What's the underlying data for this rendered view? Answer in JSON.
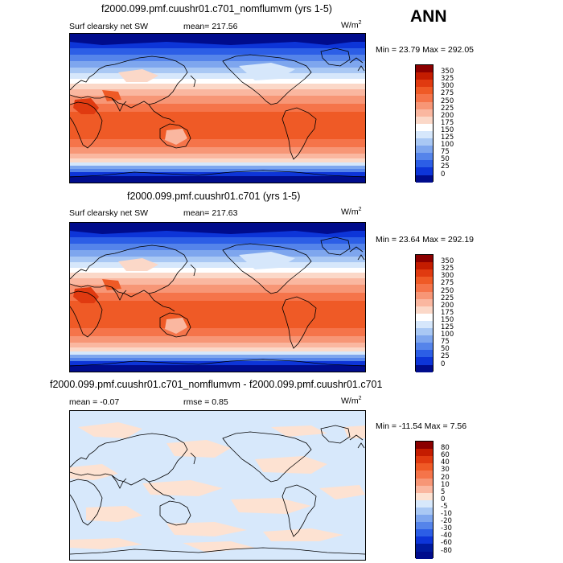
{
  "season": "ANN",
  "panels": [
    {
      "title": "f2000.099.pmf.cuushr01.c701_nomflumvm (yrs 1-5)",
      "left_label": "Surf clearsky net SW",
      "stat_text": "mean= 217.56",
      "units": "W/m",
      "units_exp": "2",
      "minmax": "Min =  23.79 Max = 292.05",
      "kind": "abs",
      "colorbar_labels": [
        "350",
        "325",
        "300",
        "275",
        "250",
        "225",
        "200",
        "175",
        "150",
        "125",
        "100",
        "75",
        "50",
        "25",
        "0"
      ]
    },
    {
      "title": "f2000.099.pmf.cuushr01.c701 (yrs 1-5)",
      "left_label": "Surf clearsky net SW",
      "stat_text": "mean= 217.63",
      "units": "W/m",
      "units_exp": "2",
      "minmax": "Min =  23.64 Max = 292.19",
      "kind": "abs",
      "colorbar_labels": [
        "350",
        "325",
        "300",
        "275",
        "250",
        "225",
        "200",
        "175",
        "150",
        "125",
        "100",
        "75",
        "50",
        "25",
        "0"
      ]
    },
    {
      "title": "f2000.099.pmf.cuushr01.c701_nomflumvm - f2000.099.pmf.cuushr01.c701",
      "left_label": "mean =   -0.07",
      "stat_text": "rmse =    0.85",
      "units": "W/m",
      "units_exp": "2",
      "minmax": "Min = -11.54 Max =    7.56",
      "kind": "diff",
      "colorbar_labels": [
        "80",
        "60",
        "40",
        "30",
        "20",
        "10",
        "5",
        "0",
        "-5",
        "-10",
        "-20",
        "-30",
        "-40",
        "-60",
        "-80"
      ]
    }
  ],
  "colors": {
    "abs_scale": [
      "#8b0000",
      "#c41c00",
      "#e03a10",
      "#ef5a26",
      "#f5744a",
      "#f79676",
      "#fab7a0",
      "#fbd8c8",
      "#ffffff",
      "#d6e7fb",
      "#a9c8f4",
      "#7ea6ee",
      "#5584ea",
      "#2c5ee6",
      "#0d35d8",
      "#000c8c"
    ],
    "diff_scale": [
      "#8b0000",
      "#c41c00",
      "#e03a10",
      "#ef5a26",
      "#f5744a",
      "#f79676",
      "#fab7a0",
      "#fde2d2",
      "#d7e8fb",
      "#a9c8f4",
      "#7ea6ee",
      "#5584ea",
      "#2c5ee6",
      "#0d35d8",
      "#001a9e",
      "#000c8c"
    ]
  }
}
